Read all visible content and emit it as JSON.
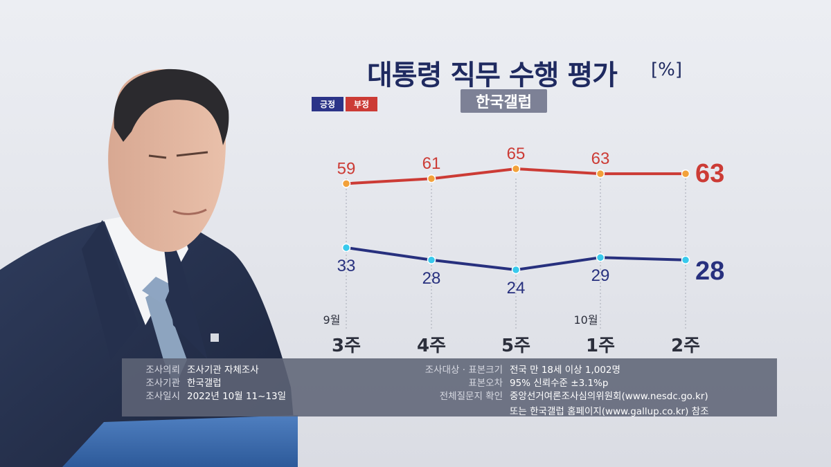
{
  "title": "대통령 직무 수행 평가",
  "title_unit": "[%]",
  "source_badge": "한국갤럽",
  "legend": [
    {
      "label": "긍정",
      "color": "#2b3488"
    },
    {
      "label": "부정",
      "color": "#cc3b35"
    }
  ],
  "chart_data": {
    "type": "line",
    "categories": [
      "3주",
      "4주",
      "5주",
      "1주",
      "2주"
    ],
    "month_labels": [
      {
        "index": 0,
        "label": "9월"
      },
      {
        "index": 3,
        "label": "10월"
      }
    ],
    "series": [
      {
        "name": "부정",
        "values": [
          59,
          61,
          65,
          63,
          63
        ],
        "color": "#cc3b35",
        "marker_color": "#f2a13a"
      },
      {
        "name": "긍정",
        "values": [
          33,
          28,
          24,
          29,
          28
        ],
        "color": "#27307e",
        "marker_color": "#38c9ec"
      }
    ],
    "ylim": [
      20,
      70
    ],
    "grid": "vertical dotted",
    "last_value_emphasized": true
  },
  "info": {
    "left": [
      {
        "label": "조사의뢰",
        "value": "조사기관 자체조사"
      },
      {
        "label": "조사기관",
        "value": "한국갤럽"
      },
      {
        "label": "조사일시",
        "value": "2022년 10월 11~13일"
      }
    ],
    "right": [
      {
        "label": "조사대상 · 표본크기",
        "value": "전국 만 18세 이상 1,002명"
      },
      {
        "label": "표본오차",
        "value": "95% 신뢰수준 ±3.1%p"
      },
      {
        "label": "전체질문지 확인",
        "value": "중앙선거여론조사심의위원회(www.nesdc.go.kr)"
      }
    ],
    "extra_line": "또는 한국갤럽 홈페이지(www.gallup.co.kr) 참조"
  }
}
